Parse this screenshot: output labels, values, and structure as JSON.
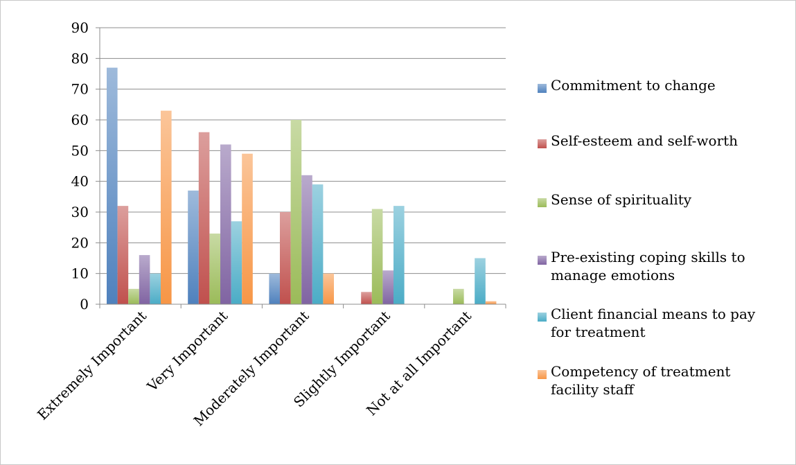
{
  "chart_data": {
    "type": "bar",
    "categories": [
      "Extremely Important",
      "Very Important",
      "Moderately Important",
      "Slightly Important",
      "Not at all Important"
    ],
    "series": [
      {
        "name": "Commitment to change",
        "color": "#4f81bd",
        "values": [
          77,
          37,
          10,
          0,
          0
        ]
      },
      {
        "name": "Self-esteem and self-worth",
        "color": "#c0504d",
        "values": [
          32,
          56,
          30,
          4,
          0
        ]
      },
      {
        "name": "Sense of spirituality",
        "color": "#9bbb59",
        "values": [
          5,
          23,
          60,
          31,
          5
        ]
      },
      {
        "name": "Pre-existing coping skills to manage emotions",
        "color": "#8064a2",
        "values": [
          16,
          52,
          42,
          11,
          0
        ]
      },
      {
        "name": "Client financial means to pay for treatment",
        "color": "#4bacc6",
        "values": [
          10,
          27,
          39,
          32,
          15
        ]
      },
      {
        "name": "Competency of treatment facility staff",
        "color": "#f79646",
        "values": [
          63,
          49,
          10,
          0,
          1
        ]
      }
    ],
    "ylim": [
      0,
      90
    ],
    "yticks": [
      0,
      10,
      20,
      30,
      40,
      50,
      60,
      70,
      80,
      90
    ],
    "grid": true,
    "legend": "right",
    "title": "",
    "xlabel": "",
    "ylabel": ""
  }
}
